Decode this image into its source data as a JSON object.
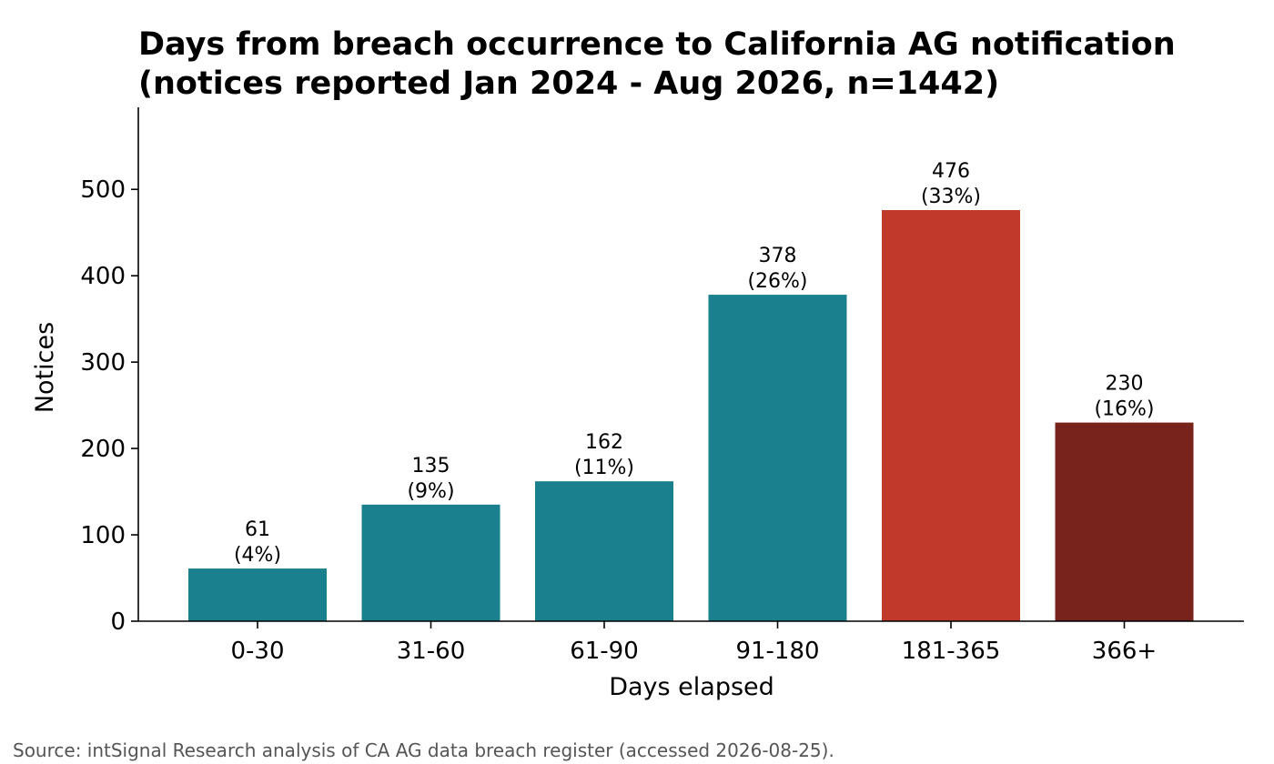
{
  "chart_data": {
    "type": "bar",
    "title_lines": [
      "Days from breach occurrence to California AG notification",
      "(notices reported Jan 2024 - Aug 2026, n=1442)"
    ],
    "xlabel": "Days elapsed",
    "ylabel": "Notices",
    "categories": [
      "0-30",
      "31-60",
      "61-90",
      "91-180",
      "181-365",
      "366+"
    ],
    "values": [
      61,
      135,
      162,
      378,
      476,
      230
    ],
    "percent_labels": [
      "(4%)",
      "(9%)",
      "(11%)",
      "(26%)",
      "(33%)",
      "(16%)"
    ],
    "bar_colors": [
      "#1b808e",
      "#1b808e",
      "#1b808e",
      "#1b808e",
      "#c0392b",
      "#78231c"
    ],
    "ylim": [
      0,
      595
    ],
    "yticks": [
      0,
      100,
      200,
      300,
      400,
      500
    ],
    "grid": false,
    "legend": "none"
  },
  "footer": {
    "source": "Source: intSignal Research analysis of CA AG data breach register (accessed 2026-08-25)."
  }
}
